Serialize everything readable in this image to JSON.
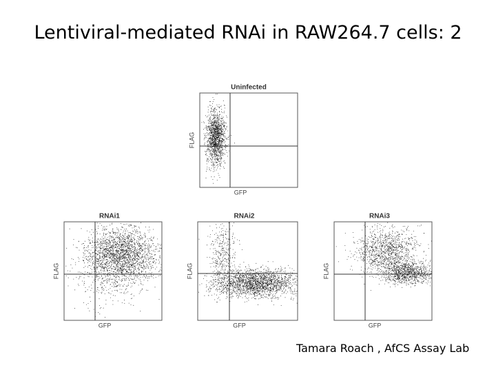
{
  "title": "Lentiviral-mediated RNAi in RAW264.7 cells: 2",
  "panels": [
    {
      "title": "Uninfected",
      "x_label": "GFP",
      "y_label": "FLAG"
    },
    {
      "title": "RNAi1",
      "x_label": "GFP",
      "y_label": "FLAG"
    },
    {
      "title": "RNAi2",
      "x_label": "GFP",
      "y_label": "FLAG"
    },
    {
      "title": "RNAi3",
      "x_label": "GFP",
      "y_label": "FLAG"
    }
  ],
  "footer": "Tamara Roach , AfCS Assay Lab"
}
